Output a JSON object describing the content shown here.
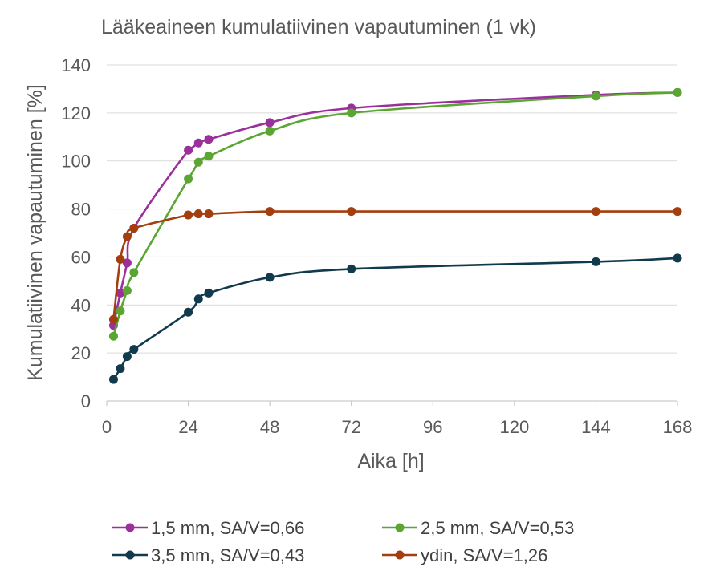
{
  "chart_data": {
    "type": "line",
    "title": "Lääkeaineen kumulatiivinen vapautuminen (1 vk)",
    "xlabel": "Aika [h]",
    "ylabel": "Kumulatiivinen vapautuminen [%]",
    "xlim": [
      0,
      168
    ],
    "ylim": [
      0,
      140
    ],
    "xticks": [
      0,
      24,
      48,
      72,
      96,
      120,
      144,
      168
    ],
    "yticks": [
      0,
      20,
      40,
      60,
      80,
      100,
      120,
      140
    ],
    "grid": "horizontal",
    "legend_position": "bottom",
    "series": [
      {
        "name": "1,5 mm, SA/V=0,66",
        "color": "#9b2f9b",
        "x": [
          2,
          4,
          6,
          8,
          24,
          27,
          30,
          48,
          72,
          144,
          168
        ],
        "y": [
          31.5,
          45,
          57.5,
          72,
          104.5,
          107.5,
          109,
          116,
          122,
          127.5,
          128.5
        ]
      },
      {
        "name": "2,5 mm, SA/V=0,53",
        "color": "#5ba532",
        "x": [
          2,
          4,
          6,
          8,
          24,
          27,
          30,
          48,
          72,
          144,
          168
        ],
        "y": [
          27,
          37.5,
          46,
          53.5,
          92.5,
          99.5,
          102,
          112.5,
          120,
          127,
          128.5
        ]
      },
      {
        "name": "3,5 mm, SA/V=0,43",
        "color": "#123a4d",
        "x": [
          2,
          4,
          6,
          8,
          24,
          27,
          30,
          48,
          72,
          144,
          168
        ],
        "y": [
          9,
          13.5,
          18.5,
          21.5,
          37,
          42.5,
          45,
          51.5,
          55,
          58,
          59.5
        ]
      },
      {
        "name": "ydin, SA/V=1,26",
        "color": "#a33f0e",
        "x": [
          2,
          4,
          6,
          8,
          24,
          27,
          30,
          48,
          72,
          144,
          168
        ],
        "y": [
          34,
          59,
          68.5,
          72,
          77.5,
          78,
          78,
          79,
          79,
          79,
          79
        ]
      }
    ]
  }
}
